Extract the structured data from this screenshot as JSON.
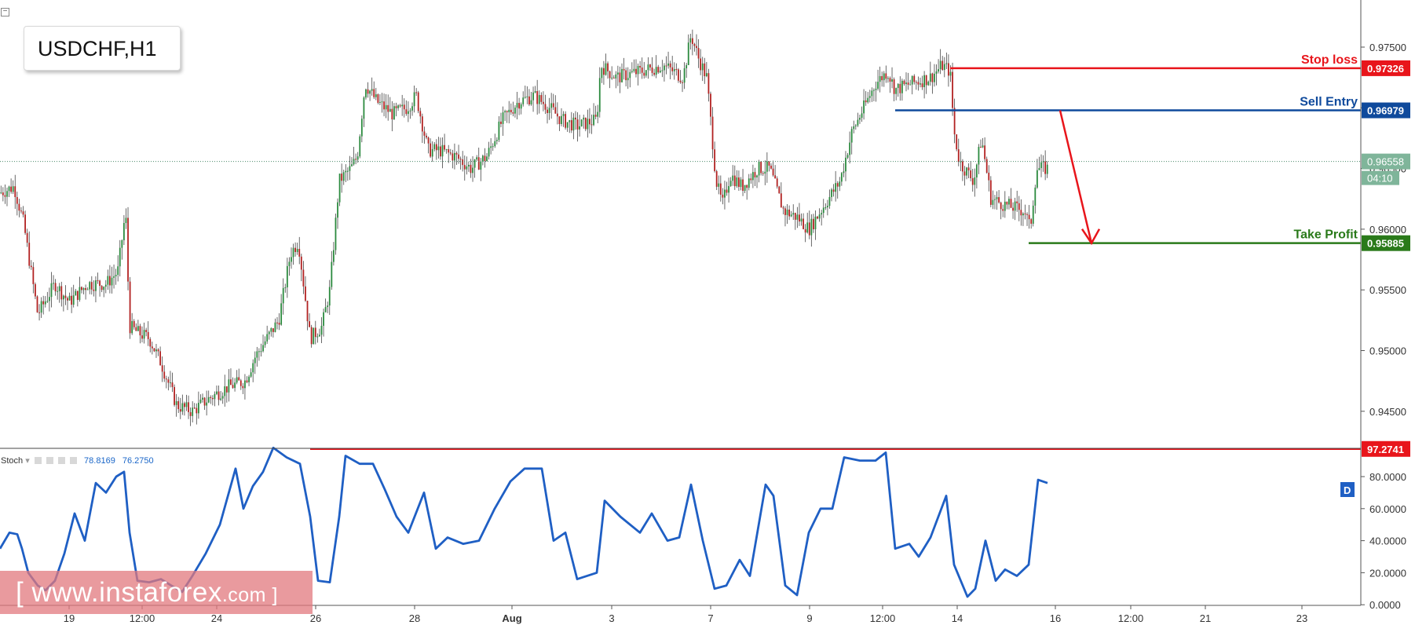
{
  "symbol": "USDCHF,H1",
  "watermark": {
    "prefix": "[ www.",
    "brand": "instaforex",
    "suffix": ".com ]"
  },
  "chart_data": {
    "type": "candlestick",
    "price_axis": {
      "min": 0.941,
      "max": 0.9785,
      "ticks": [
        "0.97500",
        "0.97000",
        "0.96500",
        "0.96000",
        "0.95500",
        "0.95000",
        "0.94500"
      ],
      "tick_values": [
        0.975,
        0.97,
        0.965,
        0.96,
        0.955,
        0.95,
        0.945
      ]
    },
    "x_ticks": [
      "19",
      "12:00",
      "24",
      "26",
      "28",
      "Aug",
      "3",
      "7",
      "9",
      "12:00",
      "14",
      "16",
      "12:00",
      "21",
      "23"
    ],
    "bar_count": 520,
    "price_path": [
      [
        0,
        0.963
      ],
      [
        18,
        0.9635
      ],
      [
        30,
        0.9605
      ],
      [
        48,
        0.953
      ],
      [
        70,
        0.9555
      ],
      [
        88,
        0.954
      ],
      [
        112,
        0.9555
      ],
      [
        135,
        0.9555
      ],
      [
        150,
        0.9565
      ],
      [
        160,
        0.9615
      ],
      [
        165,
        0.952
      ],
      [
        175,
        0.9515
      ],
      [
        190,
        0.951
      ],
      [
        205,
        0.949
      ],
      [
        225,
        0.9455
      ],
      [
        245,
        0.945
      ],
      [
        265,
        0.946
      ],
      [
        290,
        0.947
      ],
      [
        312,
        0.9475
      ],
      [
        325,
        0.9495
      ],
      [
        355,
        0.9525
      ],
      [
        370,
        0.958
      ],
      [
        380,
        0.959
      ],
      [
        395,
        0.951
      ],
      [
        410,
        0.952
      ],
      [
        420,
        0.955
      ],
      [
        432,
        0.964
      ],
      [
        447,
        0.965
      ],
      [
        455,
        0.966
      ],
      [
        465,
        0.972
      ],
      [
        480,
        0.9705
      ],
      [
        500,
        0.9695
      ],
      [
        518,
        0.97
      ],
      [
        530,
        0.971
      ],
      [
        545,
        0.9665
      ],
      [
        560,
        0.9665
      ],
      [
        580,
        0.966
      ],
      [
        600,
        0.965
      ],
      [
        620,
        0.966
      ],
      [
        640,
        0.969
      ],
      [
        660,
        0.9705
      ],
      [
        680,
        0.971
      ],
      [
        700,
        0.97
      ],
      [
        715,
        0.969
      ],
      [
        735,
        0.9685
      ],
      [
        760,
        0.969
      ],
      [
        765,
        0.9735
      ],
      [
        785,
        0.9725
      ],
      [
        815,
        0.973
      ],
      [
        845,
        0.9735
      ],
      [
        870,
        0.9725
      ],
      [
        880,
        0.976
      ],
      [
        890,
        0.974
      ],
      [
        900,
        0.9725
      ],
      [
        912,
        0.964
      ],
      [
        920,
        0.962
      ],
      [
        930,
        0.9645
      ],
      [
        945,
        0.9635
      ],
      [
        965,
        0.965
      ],
      [
        980,
        0.965
      ],
      [
        998,
        0.9615
      ],
      [
        1015,
        0.961
      ],
      [
        1030,
        0.96
      ],
      [
        1045,
        0.9615
      ],
      [
        1070,
        0.964
      ],
      [
        1085,
        0.968
      ],
      [
        1100,
        0.97
      ],
      [
        1115,
        0.972
      ],
      [
        1130,
        0.973
      ],
      [
        1140,
        0.9715
      ],
      [
        1160,
        0.972
      ],
      [
        1185,
        0.9725
      ],
      [
        1200,
        0.9735
      ],
      [
        1210,
        0.973
      ],
      [
        1215,
        0.968
      ],
      [
        1222,
        0.9655
      ],
      [
        1240,
        0.964
      ],
      [
        1250,
        0.9675
      ],
      [
        1262,
        0.9625
      ],
      [
        1280,
        0.962
      ],
      [
        1305,
        0.9615
      ],
      [
        1312,
        0.96
      ],
      [
        1320,
        0.965
      ],
      [
        1335,
        0.965
      ]
    ],
    "current_price": "0.96558",
    "countdown": "04:10",
    "levels": [
      {
        "name": "Stop loss",
        "value": "0.97326",
        "color": "#e8151b",
        "price": 0.97326,
        "x_start": 1210
      },
      {
        "name": "Sell Entry",
        "value": "0.96979",
        "color": "#0f4a9c",
        "price": 0.96979,
        "x_start": 1140
      },
      {
        "name": "Take Profit",
        "value": "0.95885",
        "color": "#2a7a1a",
        "price": 0.95885,
        "x_start": 1310
      }
    ],
    "projection": {
      "from": [
        1350,
        0.96979
      ],
      "to": [
        1390,
        0.95885
      ],
      "color": "#e8151b"
    },
    "indicator": {
      "name": "Stoch",
      "value1": "78.8169",
      "value2": "76.2750",
      "axis_ticks": [
        "80.0000",
        "60.0000",
        "40.0000",
        "20.0000",
        "0.0000"
      ],
      "axis_values": [
        80,
        60,
        40,
        20,
        0
      ],
      "level_label": "97.2741",
      "level_value": 97.2741,
      "level_color": "#e8151b",
      "badge": "D",
      "path": [
        [
          0,
          35
        ],
        [
          12,
          45
        ],
        [
          22,
          44
        ],
        [
          28,
          35
        ],
        [
          36,
          20
        ],
        [
          48,
          12
        ],
        [
          58,
          9
        ],
        [
          70,
          15
        ],
        [
          82,
          32
        ],
        [
          95,
          57
        ],
        [
          108,
          40
        ],
        [
          122,
          76
        ],
        [
          135,
          70
        ],
        [
          148,
          80
        ],
        [
          158,
          83
        ],
        [
          165,
          45
        ],
        [
          175,
          15
        ],
        [
          190,
          14
        ],
        [
          205,
          16
        ],
        [
          218,
          12
        ],
        [
          232,
          8
        ],
        [
          245,
          18
        ],
        [
          262,
          32
        ],
        [
          280,
          50
        ],
        [
          300,
          85
        ],
        [
          310,
          60
        ],
        [
          322,
          74
        ],
        [
          335,
          83
        ],
        [
          348,
          98
        ],
        [
          365,
          92
        ],
        [
          382,
          88
        ],
        [
          395,
          55
        ],
        [
          405,
          15
        ],
        [
          420,
          14
        ],
        [
          432,
          55
        ],
        [
          440,
          93
        ],
        [
          458,
          88
        ],
        [
          475,
          88
        ],
        [
          490,
          72
        ],
        [
          505,
          55
        ],
        [
          520,
          45
        ],
        [
          540,
          70
        ],
        [
          555,
          35
        ],
        [
          570,
          42
        ],
        [
          590,
          38
        ],
        [
          610,
          40
        ],
        [
          630,
          60
        ],
        [
          650,
          77
        ],
        [
          668,
          85
        ],
        [
          690,
          85
        ],
        [
          705,
          40
        ],
        [
          720,
          45
        ],
        [
          735,
          16
        ],
        [
          760,
          20
        ],
        [
          770,
          65
        ],
        [
          790,
          55
        ],
        [
          815,
          45
        ],
        [
          830,
          57
        ],
        [
          850,
          40
        ],
        [
          865,
          42
        ],
        [
          880,
          75
        ],
        [
          895,
          40
        ],
        [
          910,
          10
        ],
        [
          925,
          12
        ],
        [
          942,
          28
        ],
        [
          955,
          18
        ],
        [
          975,
          75
        ],
        [
          985,
          68
        ],
        [
          1000,
          12
        ],
        [
          1015,
          6
        ],
        [
          1030,
          45
        ],
        [
          1045,
          60
        ],
        [
          1060,
          60
        ],
        [
          1075,
          92
        ],
        [
          1095,
          90
        ],
        [
          1115,
          90
        ],
        [
          1128,
          95
        ],
        [
          1140,
          35
        ],
        [
          1158,
          38
        ],
        [
          1170,
          30
        ],
        [
          1185,
          42
        ],
        [
          1205,
          68
        ],
        [
          1215,
          25
        ],
        [
          1232,
          5
        ],
        [
          1242,
          10
        ],
        [
          1255,
          40
        ],
        [
          1268,
          15
        ],
        [
          1280,
          22
        ],
        [
          1295,
          18
        ],
        [
          1310,
          25
        ],
        [
          1322,
          78
        ],
        [
          1334,
          76
        ]
      ]
    }
  }
}
